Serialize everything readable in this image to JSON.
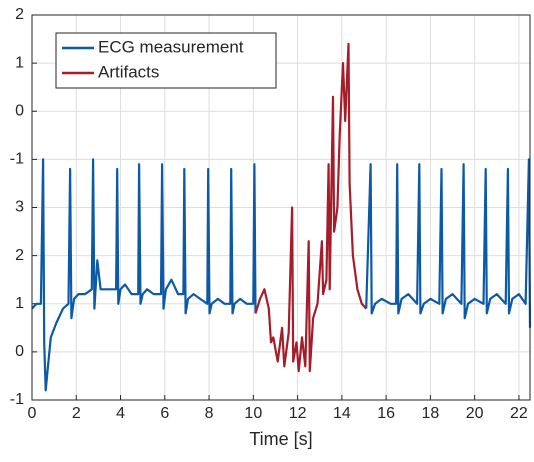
{
  "chart_data": {
    "type": "line",
    "xlabel": "Time [s]",
    "xlim": [
      0,
      22.5
    ],
    "xticks": [
      0,
      2,
      4,
      6,
      8,
      10,
      12,
      14,
      16,
      18,
      20,
      22
    ],
    "ylim": [
      -1,
      7
    ],
    "yticks": [
      -1,
      0,
      1,
      2,
      3,
      {
        "value": 4,
        "label": "-1"
      },
      {
        "value": 5,
        "label": "0"
      },
      {
        "value": 6,
        "label": "1"
      },
      {
        "value": 7,
        "label": "2"
      }
    ],
    "grid": true,
    "legend": "upper left",
    "series": [
      {
        "name": "ECG measurement",
        "color": "#0c5aa6",
        "x": [
          0,
          0.2,
          0.4,
          0.5,
          0.55,
          0.62,
          0.7,
          0.85,
          1.1,
          1.4,
          1.65,
          1.72,
          1.78,
          1.9,
          2.1,
          2.4,
          2.7,
          2.76,
          2.82,
          2.95,
          3.1,
          3.5,
          3.8,
          3.85,
          3.9,
          4.0,
          4.2,
          4.5,
          4.8,
          4.84,
          4.9,
          5.0,
          5.2,
          5.5,
          5.83,
          5.88,
          5.94,
          6.05,
          6.3,
          6.6,
          6.84,
          6.88,
          6.94,
          7.05,
          7.3,
          7.6,
          7.92,
          7.96,
          8.02,
          8.12,
          8.4,
          8.7,
          8.96,
          9.0,
          9.06,
          9.15,
          9.4,
          9.7,
          10.0,
          10.05,
          10.1,
          12.5,
          15.1,
          15.3,
          15.35,
          15.5,
          15.8,
          16.2,
          16.45,
          16.5,
          16.55,
          16.7,
          17.0,
          17.4,
          17.5,
          17.55,
          17.7,
          18.0,
          18.4,
          18.5,
          18.55,
          18.7,
          19.0,
          19.4,
          19.5,
          19.55,
          19.7,
          20.0,
          20.4,
          20.5,
          20.55,
          20.7,
          21.0,
          21.4,
          21.5,
          21.55,
          21.7,
          22.0,
          22.3,
          22.45,
          22.5
        ],
        "values": [
          0.9,
          1.0,
          1.0,
          4.0,
          0.2,
          -0.8,
          -0.4,
          0.3,
          0.6,
          0.9,
          1.0,
          3.8,
          0.7,
          1.1,
          1.2,
          1.2,
          1.3,
          4.0,
          0.9,
          1.9,
          1.3,
          1.3,
          1.3,
          3.8,
          1.0,
          1.3,
          1.4,
          1.2,
          1.2,
          3.9,
          1.0,
          1.2,
          1.3,
          1.2,
          1.2,
          3.9,
          0.9,
          1.3,
          1.5,
          1.2,
          1.2,
          3.8,
          0.8,
          1.1,
          1.2,
          1.1,
          1.0,
          3.8,
          0.8,
          1.0,
          1.1,
          1.0,
          1.0,
          3.8,
          0.8,
          1.0,
          1.1,
          1.0,
          1.0,
          3.9,
          0.8,
          null,
          0.9,
          3.9,
          0.8,
          1.0,
          1.1,
          1.0,
          1.0,
          3.9,
          0.8,
          1.1,
          1.2,
          1.0,
          3.9,
          0.8,
          1.0,
          1.1,
          1.0,
          3.8,
          0.8,
          1.1,
          1.2,
          1.0,
          3.9,
          0.7,
          1.0,
          1.1,
          1.0,
          3.8,
          0.8,
          1.1,
          1.2,
          1.0,
          3.8,
          0.8,
          1.1,
          1.2,
          1.0,
          4.0,
          0.5
        ]
      },
      {
        "name": "Artifacts",
        "color": "#a51d2a",
        "x": [
          10.1,
          10.3,
          10.5,
          10.7,
          10.8,
          10.9,
          11.1,
          11.3,
          11.4,
          11.6,
          11.75,
          11.8,
          11.95,
          12.05,
          12.2,
          12.35,
          12.5,
          12.55,
          12.7,
          12.9,
          13.1,
          13.15,
          13.3,
          13.4,
          13.45,
          13.6,
          13.65,
          13.8,
          13.9,
          14.05,
          14.15,
          14.3,
          14.35,
          14.5,
          14.7,
          14.9,
          15.1
        ],
        "values": [
          0.8,
          1.1,
          1.3,
          0.9,
          0.2,
          0.3,
          -0.2,
          0.5,
          -0.3,
          0.4,
          3.0,
          -0.2,
          0.2,
          -0.4,
          0.3,
          -0.3,
          2.3,
          -0.4,
          0.7,
          1.0,
          2.3,
          1.2,
          1.5,
          3.9,
          1.3,
          5.3,
          2.5,
          3.0,
          4.5,
          6.0,
          4.8,
          6.4,
          3.5,
          2.0,
          1.3,
          1.0,
          0.9
        ]
      }
    ]
  }
}
